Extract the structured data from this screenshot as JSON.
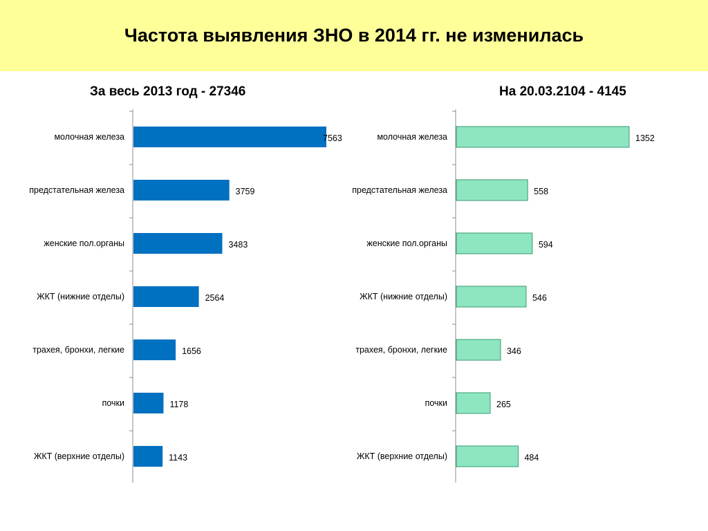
{
  "title": "Частота выявления ЗНО в 2014 гг. не изменилась",
  "colors": {
    "band": "#ffff99",
    "left_bar": "#0070c0",
    "right_bar": "#8de6c0",
    "right_bar_stroke": "#3a9a70"
  },
  "chart_data": [
    {
      "type": "bar",
      "orientation": "horizontal",
      "title": "За весь 2013 год - 27346",
      "categories": [
        "молочная железа",
        "предстательная железа",
        "женские пол.органы",
        "ЖКТ (нижние отделы)",
        "трахея, бронхи, легкие",
        "почки",
        "ЖКТ (верхние отделы)"
      ],
      "values": [
        7563,
        3759,
        3483,
        2564,
        1656,
        1178,
        1143
      ],
      "labels": [
        "7563",
        "3759",
        "3483",
        "2564",
        "1656",
        "1178",
        "1143"
      ],
      "xlim": [
        0,
        7563
      ],
      "grid": false,
      "legend": "none"
    },
    {
      "type": "bar",
      "orientation": "horizontal",
      "title": "На 20.03.2104 - 4145",
      "categories": [
        "молочная железа",
        "предстательная железа",
        "женские пол.органы",
        "ЖКТ (нижние отделы)",
        "трахея, бронхи, легкие",
        "почки",
        "ЖКТ (верхние отделы)"
      ],
      "values": [
        1352,
        558,
        594,
        546,
        346,
        265,
        484
      ],
      "labels": [
        "1352",
        "558",
        "594",
        "546",
        "346",
        "265",
        "484"
      ],
      "xlim": [
        0,
        1352
      ],
      "grid": false,
      "legend": "none"
    }
  ]
}
